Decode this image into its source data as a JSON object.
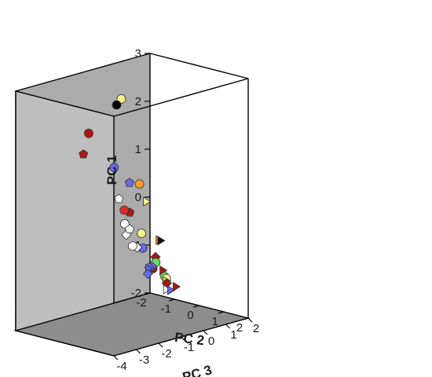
{
  "chart_data": {
    "type": "scatter",
    "projection": "3d-box",
    "title": "",
    "axes": {
      "z": {
        "label": "PC 1",
        "range": [
          -2,
          3
        ],
        "ticks": [
          "-2",
          "-1",
          "0",
          "1",
          "2",
          "3"
        ]
      },
      "x": {
        "label": "PC 2",
        "range": [
          -2,
          2
        ],
        "ticks": [
          "-2",
          "-1",
          "0",
          "1",
          "2"
        ]
      },
      "y": {
        "label": "PC 3",
        "range": [
          -4,
          2
        ],
        "ticks": [
          "2",
          "1",
          "0",
          "-1",
          "-2",
          "-3",
          "-4"
        ]
      }
    },
    "colors": {
      "back_wall": "#ababab",
      "side_wall": "#bebebe",
      "floor": "#8d8d8d",
      "edge": "#000000"
    },
    "points": [
      {
        "shape": "circle",
        "color": "#f7f48c",
        "pc2": -1.23,
        "pc3": -0.13,
        "pc1": 2.43
      },
      {
        "shape": "circle",
        "color": "#000000",
        "pc2": -1.6,
        "pc3": 0.07,
        "pc1": 2.23
      },
      {
        "shape": "circle",
        "color": "#b01515",
        "pc2": -0.22,
        "pc3": -2.69,
        "pc1": 2.18
      },
      {
        "shape": "pentagon",
        "color": "#b01515",
        "pc2": 0.42,
        "pc3": -3.63,
        "pc1": 1.95
      },
      {
        "shape": "circle",
        "color": "#6868e8",
        "pc2": 1.79,
        "pc3": -3.76,
        "pc1": 1.87
      },
      {
        "shape": "pentagon",
        "color": "#6868e8",
        "pc2": 2.29,
        "pc3": -3.62,
        "pc1": 1.6
      },
      {
        "shape": "pentagon",
        "color": "#ffffff",
        "pc2": 1.54,
        "pc3": -3.27,
        "pc1": 1.12
      },
      {
        "shape": "pentagon",
        "color": "#b01515",
        "pc2": 1.68,
        "pc3": -2.94,
        "pc1": 0.81
      },
      {
        "shape": "circle",
        "color": "#ffffff",
        "pc2": 1.42,
        "pc3": -2.88,
        "pc1": 0.53
      },
      {
        "shape": "diamond",
        "color": "#ffffff",
        "pc2": 1.44,
        "pc3": -2.83,
        "pc1": 0.3
      },
      {
        "shape": "pentagon",
        "color": "#ffffff",
        "pc2": 0.87,
        "pc3": -2.06,
        "pc1": 0.24
      },
      {
        "shape": "circle",
        "color": "#ff9a2e",
        "pc2": -0.85,
        "pc3": 0.27,
        "pc1": 0.65
      },
      {
        "shape": "circle",
        "color": "#dd2a2a",
        "pc2": -0.03,
        "pc3": -1.31,
        "pc1": 0.42
      },
      {
        "shape": "triangle-right",
        "color": "#f7f48c",
        "pc2": -1.01,
        "pc3": 0.76,
        "pc1": 0.2
      },
      {
        "shape": "circle",
        "color": "#f7f48c",
        "pc2": 0.57,
        "pc3": -1.2,
        "pc1": 0.0
      },
      {
        "shape": "circle",
        "color": "#6868e8",
        "pc2": 0.91,
        "pc3": -1.52,
        "pc1": -0.22
      },
      {
        "shape": "diamond",
        "color": "#ffffff",
        "pc2": 1.03,
        "pc3": -1.9,
        "pc1": -0.14
      },
      {
        "shape": "circle",
        "color": "#ffffff",
        "pc2": 1.12,
        "pc3": -2.2,
        "pc1": -0.06
      },
      {
        "shape": "triangle-right",
        "color": "#ff9a2e",
        "pc2": -0.48,
        "pc3": 0.74,
        "pc1": -0.53
      },
      {
        "shape": "triangle-right",
        "color": "#111111",
        "pc2": -0.72,
        "pc3": 1.08,
        "pc1": -0.62
      },
      {
        "shape": "diamond",
        "color": "#a81818",
        "pc2": 0.34,
        "pc3": -0.32,
        "pc1": -0.64
      },
      {
        "shape": "circle",
        "color": "#66dd66",
        "pc2": 0.53,
        "pc3": -0.52,
        "pc1": -0.7
      },
      {
        "shape": "circle",
        "color": "#a81818",
        "pc2": 1.08,
        "pc3": -1.25,
        "pc1": -0.66
      },
      {
        "shape": "diamond",
        "color": "#6868e8",
        "pc2": 1.43,
        "pc3": -1.67,
        "pc1": -0.52
      },
      {
        "shape": "diamond",
        "color": "#6868e8",
        "pc2": 1.5,
        "pc3": -1.87,
        "pc1": -0.5
      },
      {
        "shape": "triangle-right",
        "color": "#6868e8",
        "pc2": 1.58,
        "pc3": -1.98,
        "pc1": -0.5
      },
      {
        "shape": "diamond",
        "color": "#6868e8",
        "pc2": 1.7,
        "pc3": -2.15,
        "pc1": -0.57
      },
      {
        "shape": "pentagon",
        "color": "#66dd66",
        "pc2": 0.65,
        "pc3": -0.28,
        "pc1": -0.99
      },
      {
        "shape": "circle",
        "color": "#f7f48c",
        "pc2": 0.67,
        "pc3": -0.2,
        "pc1": -1.06
      },
      {
        "shape": "triangle-right",
        "color": "#f7f48c",
        "pc2": 0.72,
        "pc3": -0.24,
        "pc1": -1.1
      },
      {
        "shape": "triangle-right",
        "color": "#a81818",
        "pc2": 0.19,
        "pc3": 0.18,
        "pc1": -1.0
      },
      {
        "shape": "diamond",
        "color": "#a81818",
        "pc2": 1.07,
        "pc3": -0.62,
        "pc1": -1.05
      },
      {
        "shape": "triangle-right",
        "color": "#ffffff",
        "pc2": 1.8,
        "pc3": -1.42,
        "pc1": -0.98
      },
      {
        "shape": "triangle-right",
        "color": "#6868e8",
        "pc2": 1.22,
        "pc3": -0.6,
        "pc1": -1.18
      },
      {
        "shape": "triangle-right",
        "color": "#a81818",
        "pc2": 0.52,
        "pc3": 0.41,
        "pc1": -1.33
      }
    ]
  }
}
